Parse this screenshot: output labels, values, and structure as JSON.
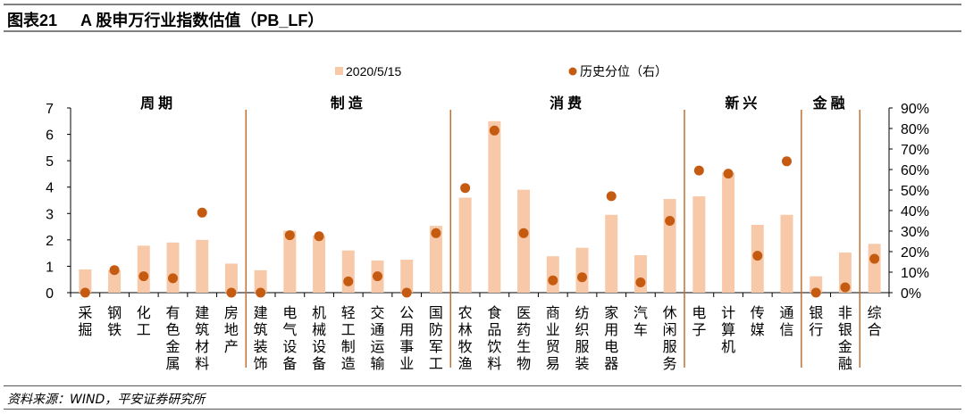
{
  "header": {
    "figure_no": "图表21",
    "title": "A 股申万行业指数估值（PB_LF）"
  },
  "source": "资料来源：WIND，平安证券研究所",
  "colors": {
    "bar": "#F8C9A9",
    "dot": "#C55A11",
    "divider": "#C07030"
  },
  "chart_data": {
    "type": "bar",
    "title": "A 股申万行业指数估值（PB_LF）",
    "categories": [
      "采掘",
      "钢铁",
      "化工",
      "有色金属",
      "建筑材料",
      "房地产",
      "建筑装饰",
      "电气设备",
      "机械设备",
      "轻工制造",
      "交通运输",
      "公用事业",
      "国防军工",
      "农林牧渔",
      "食品饮料",
      "医药生物",
      "商业贸易",
      "纺织服装",
      "家用电器",
      "汽车",
      "休闲服务",
      "电子",
      "计算机",
      "传媒",
      "通信",
      "银行",
      "非银金融",
      "综合"
    ],
    "series": [
      {
        "name": "2020/5/15",
        "type": "bar",
        "axis": "left",
        "values": [
          0.88,
          0.85,
          1.78,
          1.9,
          2.0,
          1.1,
          0.85,
          2.35,
          2.15,
          1.6,
          1.22,
          1.25,
          2.53,
          3.6,
          6.5,
          3.9,
          1.38,
          1.7,
          2.95,
          1.42,
          3.55,
          3.65,
          4.55,
          2.57,
          2.95,
          0.62,
          1.52,
          1.85
        ]
      },
      {
        "name": "历史分位（右）",
        "type": "scatter",
        "axis": "right",
        "values": [
          0,
          11,
          8,
          7,
          39,
          0,
          0,
          28,
          27.5,
          5.5,
          8,
          0,
          29,
          51,
          79,
          29,
          6,
          7.5,
          47,
          5,
          35,
          59.5,
          58,
          18,
          64,
          0,
          2.6,
          16.5
        ]
      }
    ],
    "groups": [
      {
        "name": "周期",
        "from": 0,
        "to": 5
      },
      {
        "name": "制造",
        "from": 6,
        "to": 12
      },
      {
        "name": "消费",
        "from": 13,
        "to": 20
      },
      {
        "name": "新兴",
        "from": 21,
        "to": 24
      },
      {
        "name": "金融",
        "from": 25,
        "to": 26
      }
    ],
    "ylim": [
      0,
      7
    ],
    "yticks": [
      "0",
      "1",
      "2",
      "3",
      "4",
      "5",
      "6",
      "7"
    ],
    "y2lim": [
      0,
      90
    ],
    "y2ticks": [
      "0%",
      "10%",
      "20%",
      "30%",
      "40%",
      "50%",
      "60%",
      "70%",
      "80%",
      "90%"
    ],
    "legend": "top-center",
    "grid": false
  }
}
